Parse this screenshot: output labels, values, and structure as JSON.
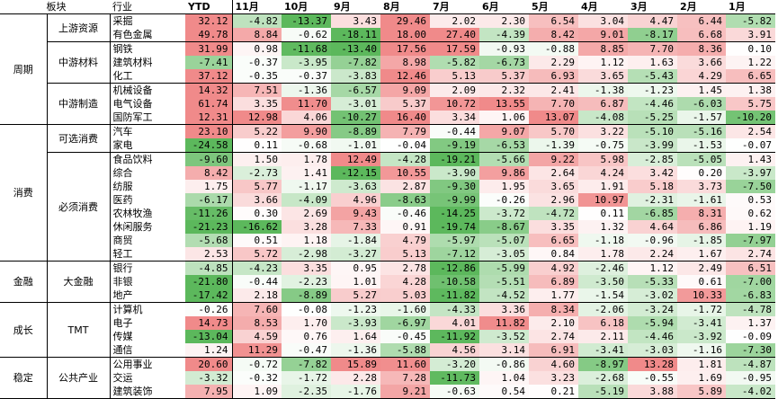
{
  "chart_data": {
    "type": "heatmap",
    "header": {
      "sector": "板块",
      "industry": "行业",
      "columns": [
        "YTD",
        "11月",
        "10月",
        "9月",
        "8月",
        "7月",
        "6月",
        "5月",
        "4月",
        "3月",
        "2月",
        "1月"
      ]
    },
    "colors": {
      "positive": "#f08a8a",
      "negative": "#5cb85c",
      "neutral": "#ffffff"
    },
    "sectors": [
      {
        "name": "周期",
        "groups": [
          {
            "name": "上游资源",
            "rows": [
              {
                "industry": "采掘",
                "values": [
                  32.12,
                  -4.82,
                  -13.37,
                  3.43,
                  29.46,
                  2.02,
                  2.3,
                  6.54,
                  3.04,
                  4.47,
                  6.44,
                  -5.82
                ]
              },
              {
                "industry": "有色金属",
                "values": [
                  49.78,
                  8.84,
                  -0.62,
                  -18.11,
                  18.0,
                  27.4,
                  -4.39,
                  8.42,
                  9.01,
                  -8.17,
                  6.68,
                  3.91
                ]
              }
            ]
          },
          {
            "name": "中游材料",
            "rows": [
              {
                "industry": "钢铁",
                "values": [
                  31.99,
                  0.98,
                  -11.68,
                  -13.4,
                  17.56,
                  17.59,
                  -0.93,
                  -0.88,
                  8.85,
                  7.7,
                  8.36,
                  0.1
                ]
              },
              {
                "industry": "建筑材料",
                "values": [
                  -7.41,
                  -0.37,
                  -3.95,
                  -7.82,
                  8.98,
                  -5.82,
                  -6.73,
                  2.29,
                  1.12,
                  1.63,
                  3.66,
                  1.22
                ]
              },
              {
                "industry": "化工",
                "values": [
                  37.12,
                  -0.35,
                  -0.37,
                  -3.83,
                  12.46,
                  5.13,
                  5.37,
                  6.93,
                  3.65,
                  -5.43,
                  4.29,
                  6.65
                ]
              }
            ]
          },
          {
            "name": "中游制造",
            "rows": [
              {
                "industry": "机械设备",
                "values": [
                  14.32,
                  7.51,
                  -1.36,
                  -6.57,
                  9.09,
                  2.09,
                  2.32,
                  2.41,
                  -1.38,
                  -1.23,
                  1.45,
                  1.38
                ]
              },
              {
                "industry": "电气设备",
                "values": [
                  61.74,
                  3.35,
                  11.7,
                  -3.01,
                  5.37,
                  10.72,
                  13.55,
                  7.7,
                  6.87,
                  -4.46,
                  -6.03,
                  5.75
                ]
              },
              {
                "industry": "国防军工",
                "values": [
                  12.31,
                  12.98,
                  4.06,
                  -10.27,
                  16.4,
                  3.34,
                  1.06,
                  13.07,
                  -4.08,
                  -5.25,
                  -1.57,
                  -10.2
                ]
              }
            ]
          }
        ]
      },
      {
        "name": "消费",
        "groups": [
          {
            "name": "可选消费",
            "rows": [
              {
                "industry": "汽车",
                "values": [
                  23.1,
                  5.22,
                  9.9,
                  -8.89,
                  7.79,
                  -0.44,
                  9.07,
                  5.7,
                  3.22,
                  -5.1,
                  -5.16,
                  2.54
                ]
              },
              {
                "industry": "家电",
                "values": [
                  -24.58,
                  0.11,
                  -0.68,
                  -1.01,
                  -0.04,
                  -9.19,
                  -6.53,
                  -1.39,
                  -0.75,
                  -3.99,
                  -1.53,
                  -0.07
                ]
              }
            ]
          },
          {
            "name": "必须消费",
            "rows": [
              {
                "industry": "食品饮料",
                "values": [
                  -9.6,
                  1.5,
                  1.78,
                  12.49,
                  -4.28,
                  -19.21,
                  -5.66,
                  9.22,
                  5.98,
                  -2.85,
                  -5.05,
                  1.43
                ]
              },
              {
                "industry": "综合",
                "values": [
                  8.42,
                  -2.73,
                  1.41,
                  -12.15,
                  10.55,
                  -3.9,
                  9.86,
                  2.64,
                  4.24,
                  3.42,
                  0.2,
                  -3.97
                ]
              },
              {
                "industry": "纺服",
                "values": [
                  1.75,
                  5.77,
                  -1.17,
                  -3.63,
                  2.87,
                  -9.3,
                  1.95,
                  3.65,
                  1.91,
                  5.18,
                  3.73,
                  -7.5
                ]
              },
              {
                "industry": "医药",
                "values": [
                  -6.17,
                  3.66,
                  -4.09,
                  4.96,
                  -8.63,
                  -9.99,
                  -0.26,
                  2.96,
                  10.97,
                  -2.31,
                  -1.61,
                  0.53
                ]
              },
              {
                "industry": "农林牧渔",
                "values": [
                  -11.26,
                  0.3,
                  2.69,
                  9.43,
                  -0.46,
                  -14.25,
                  -3.72,
                  -4.72,
                  0.11,
                  -6.85,
                  8.31,
                  0.62
                ]
              },
              {
                "industry": "休闲服务",
                "values": [
                  -21.23,
                  -16.62,
                  3.28,
                  7.33,
                  0.91,
                  -19.74,
                  -8.67,
                  3.35,
                  1.32,
                  4.64,
                  6.86,
                  1.19
                ]
              },
              {
                "industry": "商贸",
                "values": [
                  -5.68,
                  0.51,
                  1.18,
                  -1.84,
                  4.79,
                  -5.97,
                  -5.07,
                  6.65,
                  -1.18,
                  -0.96,
                  -1.85,
                  -7.97
                ]
              },
              {
                "industry": "轻工",
                "values": [
                  2.53,
                  5.72,
                  -2.98,
                  -3.27,
                  5.13,
                  -7.12,
                  -3.05,
                  0.84,
                  1.78,
                  2.24,
                  1.67,
                  2.74
                ]
              }
            ]
          }
        ]
      },
      {
        "name": "金融",
        "groups": [
          {
            "name": "大金融",
            "rows": [
              {
                "industry": "银行",
                "values": [
                  -4.85,
                  -4.23,
                  3.35,
                  0.95,
                  2.78,
                  -12.86,
                  -5.99,
                  4.92,
                  -2.46,
                  1.12,
                  2.49,
                  6.51
                ]
              },
              {
                "industry": "非银",
                "values": [
                  -21.8,
                  -0.44,
                  -2.23,
                  1.01,
                  4.28,
                  -10.58,
                  -5.51,
                  6.89,
                  -3.5,
                  -5.33,
                  0.61,
                  -7.0
                ]
              },
              {
                "industry": "地产",
                "values": [
                  -17.42,
                  2.18,
                  -8.89,
                  5.27,
                  5.03,
                  -11.82,
                  -4.52,
                  1.77,
                  -1.54,
                  -3.02,
                  10.33,
                  -6.83
                ]
              }
            ]
          }
        ]
      },
      {
        "name": "成长",
        "groups": [
          {
            "name": "TMT",
            "rows": [
              {
                "industry": "计算机",
                "values": [
                  -0.26,
                  7.6,
                  -0.08,
                  -1.23,
                  -1.6,
                  -4.33,
                  3.36,
                  8.34,
                  -2.06,
                  -3.24,
                  -1.72,
                  -4.78
                ]
              },
              {
                "industry": "电子",
                "values": [
                  14.73,
                  8.53,
                  1.7,
                  -3.93,
                  -6.97,
                  4.01,
                  11.82,
                  2.1,
                  6.18,
                  -5.94,
                  -3.41,
                  1.37
                ]
              },
              {
                "industry": "传媒",
                "values": [
                  -13.04,
                  4.59,
                  0.76,
                  1.64,
                  -0.45,
                  -11.92,
                  -3.52,
                  2.74,
                  2.11,
                  -4.46,
                  -3.92,
                  -0.09
                ]
              },
              {
                "industry": "通信",
                "values": [
                  1.24,
                  11.29,
                  -0.47,
                  -1.36,
                  -5.88,
                  4.56,
                  3.14,
                  6.91,
                  -3.41,
                  -3.03,
                  -1.16,
                  -7.3
                ]
              }
            ]
          }
        ]
      },
      {
        "name": "稳定",
        "groups": [
          {
            "name": "公共产业",
            "rows": [
              {
                "industry": "公用事业",
                "values": [
                  20.6,
                  -0.72,
                  -7.82,
                  15.89,
                  11.6,
                  -3.2,
                  -0.86,
                  4.6,
                  -8.97,
                  13.28,
                  1.81,
                  -4.87
                ]
              },
              {
                "industry": "交运",
                "values": [
                  -3.32,
                  -0.32,
                  -1.72,
                  2.28,
                  7.28,
                  -11.73,
                  1.04,
                  3.23,
                  -2.68,
                  -0.55,
                  1.69,
                  -0.95
                ]
              },
              {
                "industry": "建筑装饰",
                "values": [
                  7.95,
                  1.09,
                  -2.35,
                  -1.76,
                  9.21,
                  -0.63,
                  0.54,
                  0.21,
                  -5.19,
                  3.88,
                  5.89,
                  -4.02
                ]
              }
            ]
          }
        ]
      }
    ]
  }
}
